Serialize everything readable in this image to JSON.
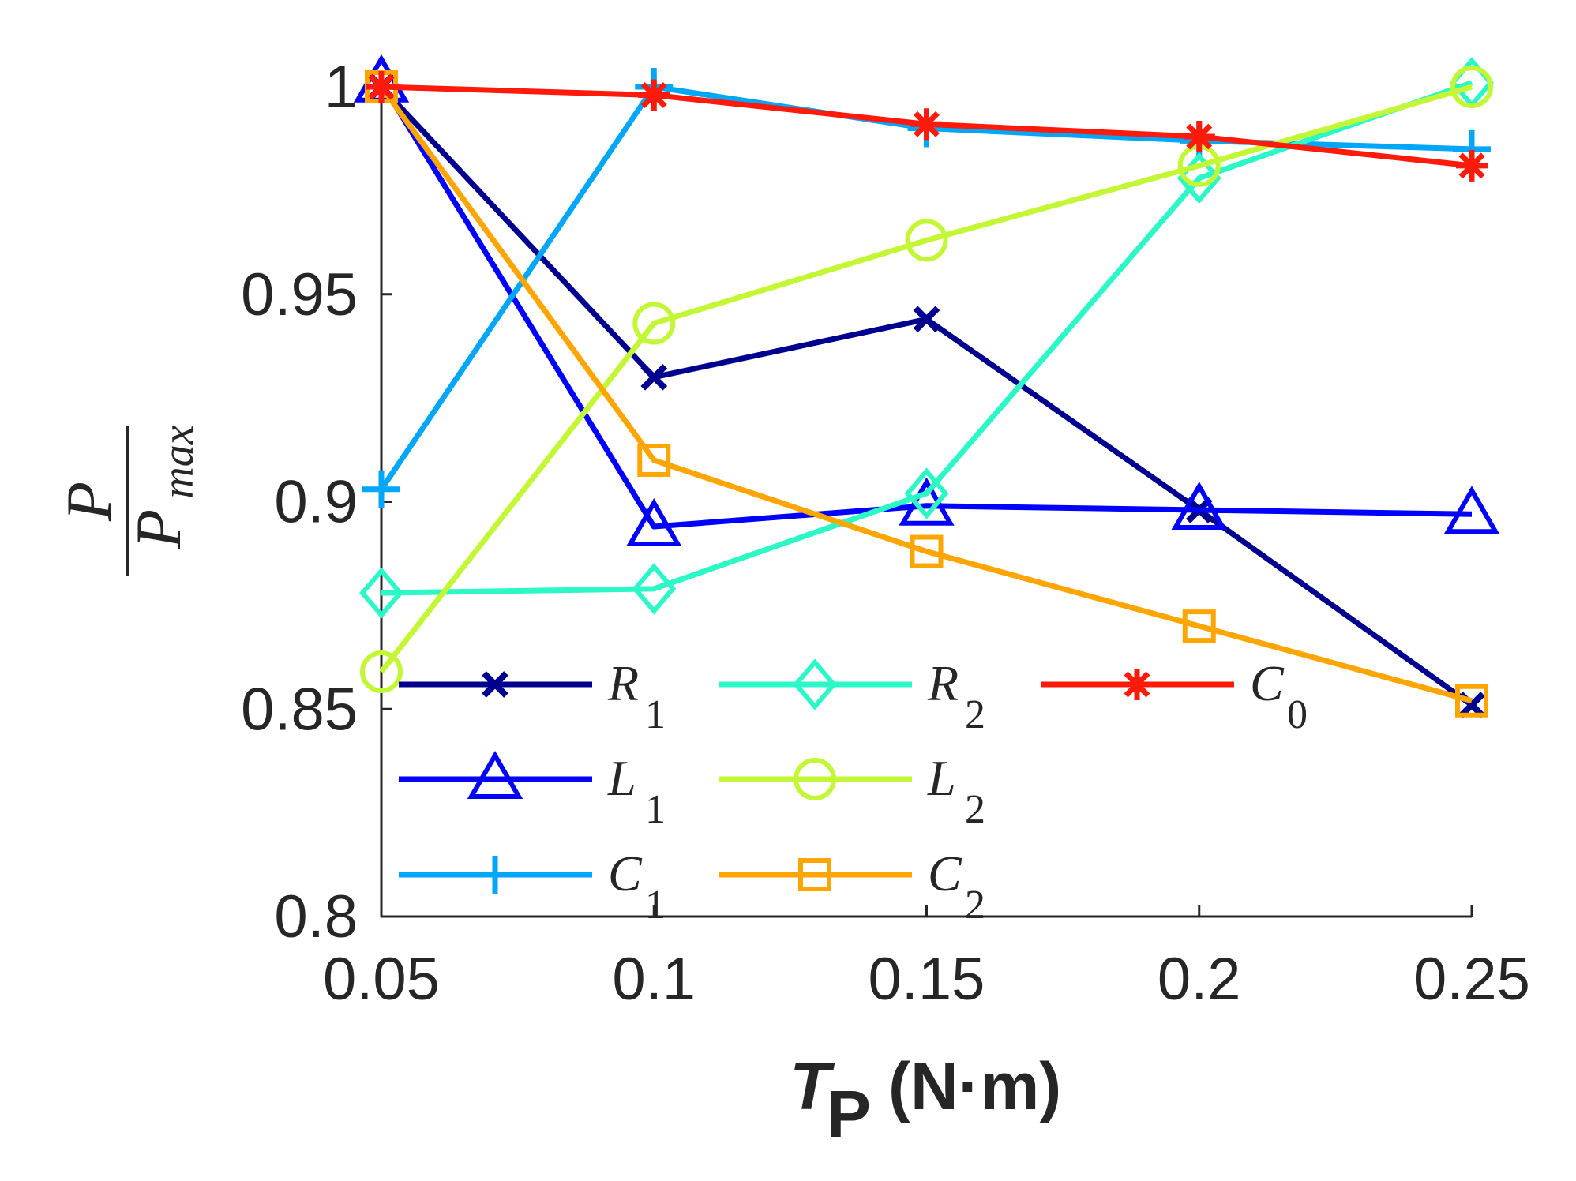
{
  "chart_data": {
    "type": "line",
    "x": [
      0.05,
      0.1,
      0.15,
      0.2,
      0.25
    ],
    "xticks": [
      "0.05",
      "0.1",
      "0.15",
      "0.2",
      "0.25"
    ],
    "yticks": [
      "0.8",
      "0.85",
      "0.9",
      "0.95",
      "1"
    ],
    "xlim": [
      0.05,
      0.25
    ],
    "ylim": [
      0.8,
      1.0
    ],
    "xlabel": {
      "main": "T",
      "sub": "P",
      "unit": "(N·m)"
    },
    "ylabel": {
      "numerator": "P",
      "denominator": "P",
      "denominator_sub": "max"
    },
    "grid": false,
    "legend_placement": "bottom-left",
    "series": [
      {
        "name": "R",
        "sub": "1",
        "marker": "x",
        "color": "#00008f",
        "values": [
          1.0,
          0.93,
          0.944,
          0.898,
          0.851
        ]
      },
      {
        "name": "L",
        "sub": "1",
        "marker": "triangle",
        "color": "#0000ff",
        "values": [
          1.001,
          0.894,
          0.899,
          0.898,
          0.897
        ]
      },
      {
        "name": "C",
        "sub": "1",
        "marker": "plus",
        "color": "#00a6f7",
        "values": [
          0.903,
          1.0,
          0.99,
          0.987,
          0.985
        ]
      },
      {
        "name": "R",
        "sub": "2",
        "marker": "diamond",
        "color": "#2cf7c6",
        "values": [
          0.878,
          0.879,
          0.902,
          0.978,
          1.001
        ]
      },
      {
        "name": "L",
        "sub": "2",
        "marker": "circle",
        "color": "#c3f735",
        "values": [
          0.859,
          0.943,
          0.963,
          0.981,
          1.0
        ]
      },
      {
        "name": "C",
        "sub": "2",
        "marker": "square",
        "color": "#ffa500",
        "values": [
          1.0,
          0.91,
          0.888,
          0.87,
          0.852
        ]
      },
      {
        "name": "C",
        "sub": "0",
        "marker": "asterisk",
        "color": "#ff1a0a",
        "values": [
          1.0,
          0.998,
          0.991,
          0.988,
          0.981
        ]
      }
    ]
  }
}
